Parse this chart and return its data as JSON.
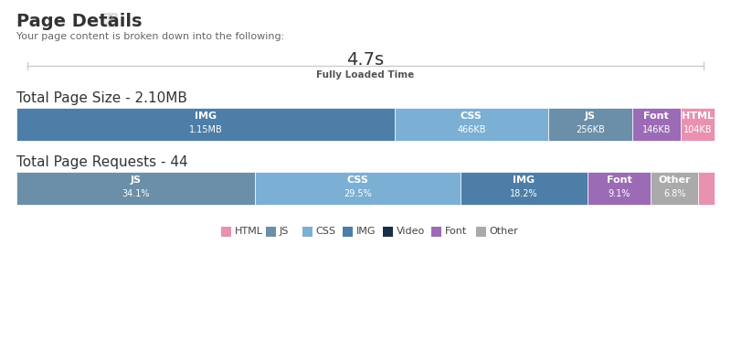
{
  "title": "Page Details",
  "question_mark": "?",
  "subtitle": "Your page content is broken down into the following:",
  "loaded_time": "4.7s",
  "loaded_label": "Fully Loaded Time",
  "size_title": "Total Page Size - 2.10MB",
  "size_segments": [
    {
      "label": "IMG",
      "sublabel": "1.15MB",
      "value": 1150,
      "color": "#4d7ea8"
    },
    {
      "label": "CSS",
      "sublabel": "466KB",
      "value": 466,
      "color": "#7bafd4"
    },
    {
      "label": "JS",
      "sublabel": "256KB",
      "value": 256,
      "color": "#6b8fa8"
    },
    {
      "label": "Font",
      "sublabel": "146KB",
      "value": 146,
      "color": "#9b6bb5"
    },
    {
      "label": "HTML",
      "sublabel": "104KB",
      "value": 104,
      "color": "#e891b0"
    }
  ],
  "requests_title": "Total Page Requests - 44",
  "requests_segments": [
    {
      "label": "JS",
      "sublabel": "34.1%",
      "value": 34.1,
      "color": "#6b8fa8"
    },
    {
      "label": "CSS",
      "sublabel": "29.5%",
      "value": 29.5,
      "color": "#7bafd4"
    },
    {
      "label": "IMG",
      "sublabel": "18.2%",
      "value": 18.2,
      "color": "#4d7ea8"
    },
    {
      "label": "Font",
      "sublabel": "9.1%",
      "value": 9.1,
      "color": "#9b6bb5"
    },
    {
      "label": "Other",
      "sublabel": "6.8%",
      "value": 6.8,
      "color": "#aaaaaa"
    },
    {
      "label": "",
      "sublabel": "",
      "value": 2.3,
      "color": "#e891b0"
    }
  ],
  "legend": [
    {
      "label": "HTML",
      "color": "#e891b0"
    },
    {
      "label": "JS",
      "color": "#6b8fa8"
    },
    {
      "label": "CSS",
      "color": "#7bafd4"
    },
    {
      "label": "IMG",
      "color": "#4d7ea8"
    },
    {
      "label": "Video",
      "color": "#1a2e4a"
    },
    {
      "label": "Font",
      "color": "#9b6bb5"
    },
    {
      "label": "Other",
      "color": "#aaaaaa"
    }
  ],
  "bg_color": "#ffffff",
  "text_color": "#333333"
}
